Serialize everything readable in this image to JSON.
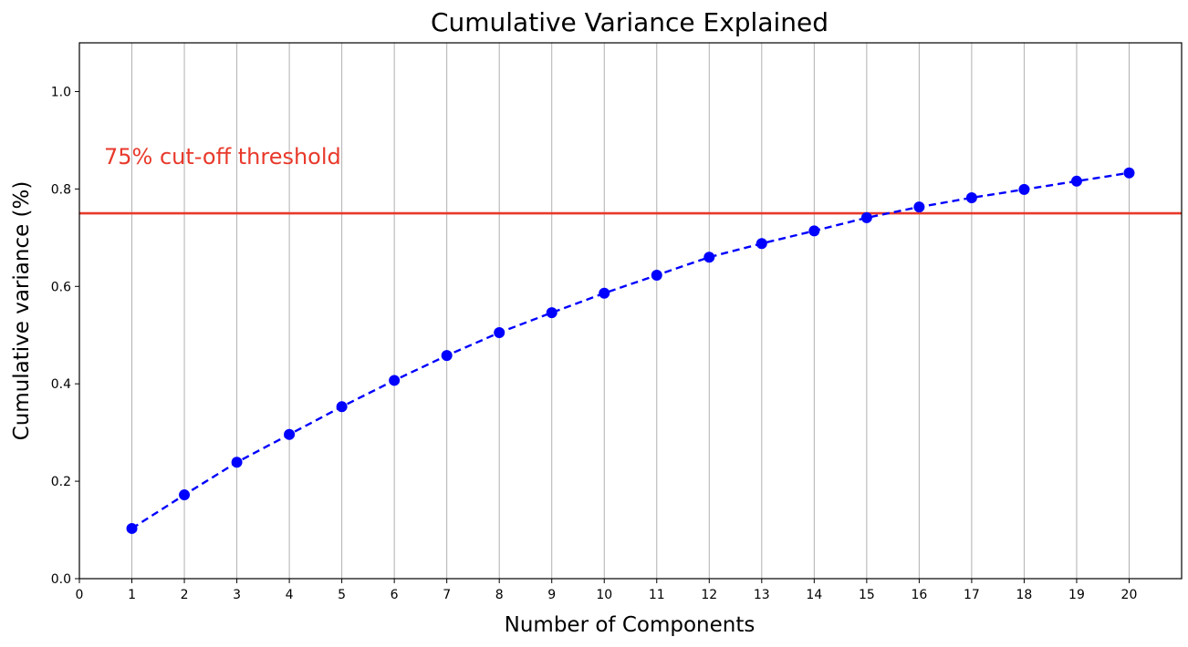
{
  "chart_data": {
    "type": "line",
    "title": "Cumulative Variance Explained",
    "xlabel": "Number of Components",
    "ylabel": "Cumulative variance (%)",
    "xlim": [
      0,
      21
    ],
    "ylim": [
      0,
      1.1
    ],
    "x_ticks": [
      0,
      1,
      2,
      3,
      4,
      5,
      6,
      7,
      8,
      9,
      10,
      11,
      12,
      13,
      14,
      15,
      16,
      17,
      18,
      19,
      20
    ],
    "y_ticks": [
      0.0,
      0.2,
      0.4,
      0.6,
      0.8,
      1.0
    ],
    "y_tick_labels": [
      "0.0",
      "0.2",
      "0.4",
      "0.6",
      "0.8",
      "1.0"
    ],
    "grid": "vertical",
    "series": [
      {
        "x": [
          1,
          2,
          3,
          4,
          5,
          6,
          7,
          8,
          9,
          10,
          11,
          12,
          13,
          14,
          15,
          16,
          17,
          18,
          19,
          20
        ],
        "values": [
          0.103,
          0.172,
          0.239,
          0.296,
          0.353,
          0.407,
          0.458,
          0.505,
          0.546,
          0.586,
          0.623,
          0.66,
          0.688,
          0.714,
          0.741,
          0.763,
          0.782,
          0.799,
          0.816,
          0.833
        ],
        "color": "#0000ff",
        "line_style": "dashed",
        "marker": "circle"
      }
    ],
    "threshold": {
      "y": 0.75,
      "color": "#e8392b",
      "label": "75% cut-off threshold"
    }
  }
}
